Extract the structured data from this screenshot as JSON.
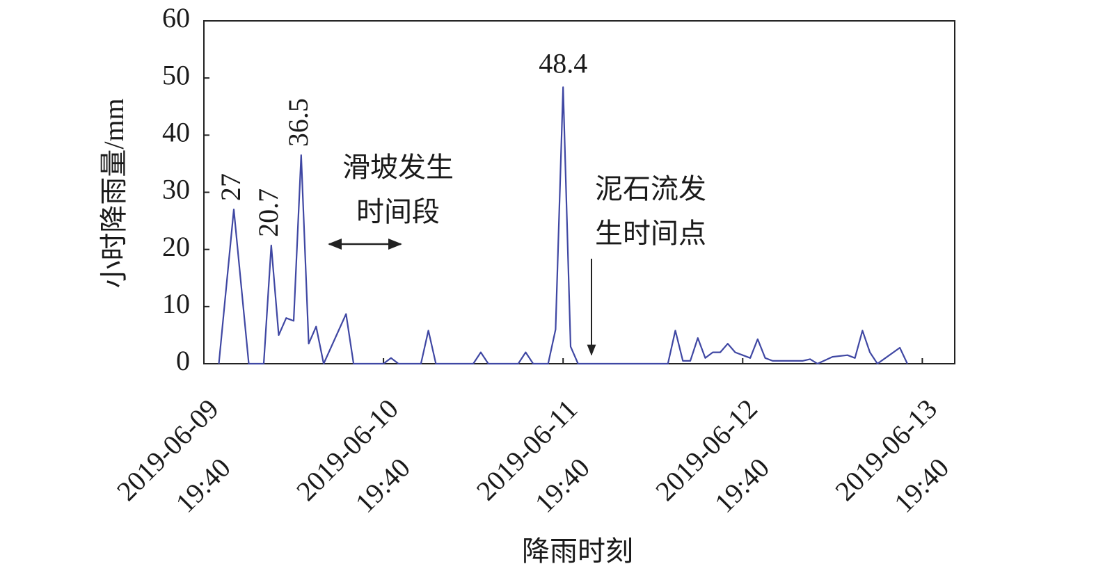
{
  "chart_data": {
    "type": "line",
    "y_label": "小时降雨量/mm",
    "x_label": "降雨时刻",
    "x": [
      "2019-06-09 21:40",
      "2019-06-09 23:40",
      "2019-06-10 01:40",
      "2019-06-10 03:40",
      "2019-06-10 04:40",
      "2019-06-10 05:40",
      "2019-06-10 06:40",
      "2019-06-10 07:40",
      "2019-06-10 08:40",
      "2019-06-10 09:40",
      "2019-06-10 10:40",
      "2019-06-10 11:40",
      "2019-06-10 14:40",
      "2019-06-10 15:40",
      "2019-06-10 19:40",
      "2019-06-10 20:40",
      "2019-06-10 21:40",
      "2019-06-11 00:40",
      "2019-06-11 01:40",
      "2019-06-11 02:40",
      "2019-06-11 07:40",
      "2019-06-11 08:40",
      "2019-06-11 09:40",
      "2019-06-11 13:40",
      "2019-06-11 14:40",
      "2019-06-11 15:40",
      "2019-06-11 17:40",
      "2019-06-11 18:40",
      "2019-06-11 19:40",
      "2019-06-11 20:40",
      "2019-06-11 21:40",
      "2019-06-12 09:40",
      "2019-06-12 10:40",
      "2019-06-12 11:40",
      "2019-06-12 12:40",
      "2019-06-12 13:40",
      "2019-06-12 14:40",
      "2019-06-12 15:40",
      "2019-06-12 16:40",
      "2019-06-12 17:40",
      "2019-06-12 18:40",
      "2019-06-12 19:40",
      "2019-06-12 20:40",
      "2019-06-12 21:40",
      "2019-06-12 22:40",
      "2019-06-12 23:40",
      "2019-06-13 03:40",
      "2019-06-13 04:40",
      "2019-06-13 05:40",
      "2019-06-13 07:40",
      "2019-06-13 09:40",
      "2019-06-13 10:40",
      "2019-06-13 11:40",
      "2019-06-13 12:40",
      "2019-06-13 13:40",
      "2019-06-13 16:40",
      "2019-06-13 17:40"
    ],
    "series": [
      {
        "color": "#3f47a3",
        "values": [
          0,
          27,
          0,
          0,
          20.7,
          5,
          8,
          7.5,
          36.5,
          3.5,
          6.5,
          0,
          8.7,
          0,
          0,
          1,
          0,
          0,
          5.8,
          0,
          0,
          2,
          0,
          0,
          2,
          0,
          0,
          6,
          48.4,
          3,
          0,
          0,
          5.8,
          0.5,
          0.5,
          4.5,
          1,
          2,
          2,
          3.5,
          2,
          1.5,
          1,
          4.3,
          1,
          0.5,
          0.5,
          0.8,
          0,
          1.2,
          1.5,
          1,
          5.8,
          2,
          0,
          2.8,
          0
        ]
      }
    ],
    "annotations": [
      {
        "lines": [
          "滑坡发生",
          "时间段"
        ]
      },
      {
        "lines": [
          "泥石流发",
          "生时间点"
        ]
      }
    ],
    "xlim": [
      "2019-06-09 19:40",
      "2019-06-14 00:00"
    ],
    "xticks": [
      "2019-06-09 19:40",
      "2019-06-10 19:40",
      "2019-06-11 19:40",
      "2019-06-12 19:40",
      "2019-06-13 19:40"
    ],
    "ylim": [
      0,
      60
    ],
    "yticks": [
      0,
      10,
      20,
      30,
      40,
      50,
      60
    ]
  }
}
